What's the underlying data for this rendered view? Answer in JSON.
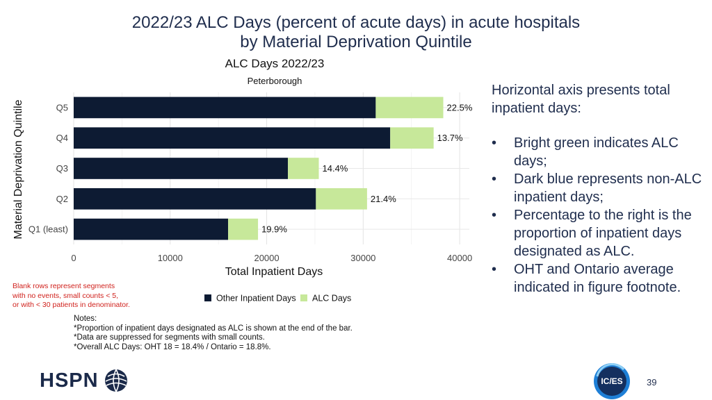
{
  "slide": {
    "title_line1": "2022/23 ALC Days (percent of acute days) in acute hospitals",
    "title_line2": "by Material Deprivation Quintile",
    "right_intro": "Horizontal axis presents total inpatient days:",
    "bullets": [
      "Bright green indicates ALC days;",
      "Dark blue represents non-ALC inpatient days;",
      "Percentage to the right is the proportion of inpatient days designated as ALC.",
      "OHT and Ontario average indicated in figure footnote."
    ],
    "bullet_symbol": "•",
    "blank_note_lines": [
      "Blank rows represent segments",
      "with no events, small counts < 5,",
      "or with < 30 patients in denominator."
    ],
    "notes_lines": [
      "Notes:",
      "*Proportion of inpatient days designated as ALC is shown at the end of the bar.",
      "*Data are suppressed for segments with small counts.",
      "*Overall ALC Days: OHT 18 = 18.4% / Ontario = 18.8%."
    ],
    "logo_left": "HSPN",
    "logo_right": "IC/ES",
    "page_number": "39"
  },
  "chart_data": {
    "type": "bar",
    "orientation": "horizontal",
    "stacked": true,
    "title": "ALC Days 2022/23",
    "subtitle": "Peterborough",
    "xlabel": "Total Inpatient Days",
    "ylabel": "Material Deprivation Quintile",
    "categories": [
      "Q5",
      "Q4",
      "Q3",
      "Q2",
      "Q1 (least)"
    ],
    "xlim": [
      0,
      41000
    ],
    "xticks": [
      0,
      10000,
      20000,
      30000,
      40000
    ],
    "xtick_labels": [
      "0",
      "10000",
      "20000",
      "30000",
      "40000"
    ],
    "grid": true,
    "legend_position": "bottom",
    "series": [
      {
        "name": "Other Inpatient Days",
        "color": "#0d1b33",
        "values": [
          31300,
          32800,
          22200,
          25100,
          16000
        ]
      },
      {
        "name": "ALC Days",
        "color": "#c7e89a",
        "values": [
          7000,
          4500,
          3200,
          5300,
          3100
        ]
      }
    ],
    "data_labels": [
      "22.5%",
      "13.7%",
      "14.4%",
      "21.4%",
      "19.9%"
    ]
  }
}
